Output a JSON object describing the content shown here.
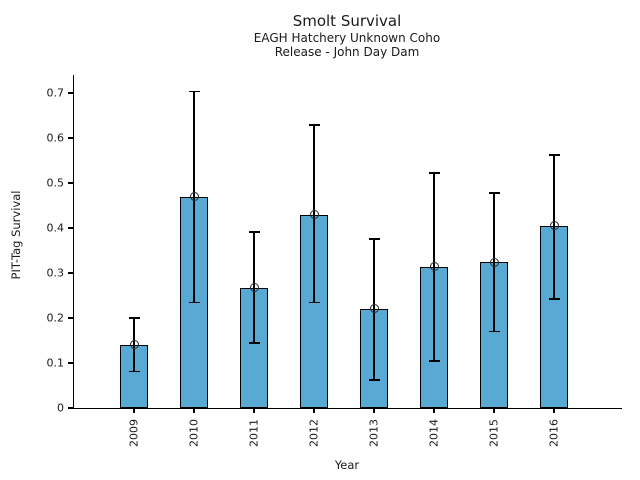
{
  "chart_data": {
    "type": "bar",
    "title": "Smolt Survival",
    "subtitle1": "EAGH Hatchery Unknown Coho",
    "subtitle2": "Release - John Day Dam",
    "categories": [
      "2009",
      "2010",
      "2011",
      "2012",
      "2013",
      "2014",
      "2015",
      "2016"
    ],
    "values": [
      0.141,
      0.469,
      0.267,
      0.43,
      0.221,
      0.314,
      0.324,
      0.405
    ],
    "error_low": [
      0.081,
      0.234,
      0.144,
      0.234,
      0.062,
      0.104,
      0.17,
      0.242
    ],
    "error_high": [
      0.2,
      0.703,
      0.391,
      0.629,
      0.376,
      0.522,
      0.478,
      0.562
    ],
    "xlabel": "Year",
    "ylabel": "PIT-Tag Survival",
    "ylim": [
      0,
      0.74
    ],
    "yticks": [
      0,
      0.1,
      0.2,
      0.3,
      0.4,
      0.5,
      0.6,
      0.7
    ],
    "grid": false,
    "legend": "none",
    "bar_color": "#58AAD5",
    "bar_edge_color": "#000000",
    "error_color": "#000000",
    "marker": "open-circle"
  }
}
